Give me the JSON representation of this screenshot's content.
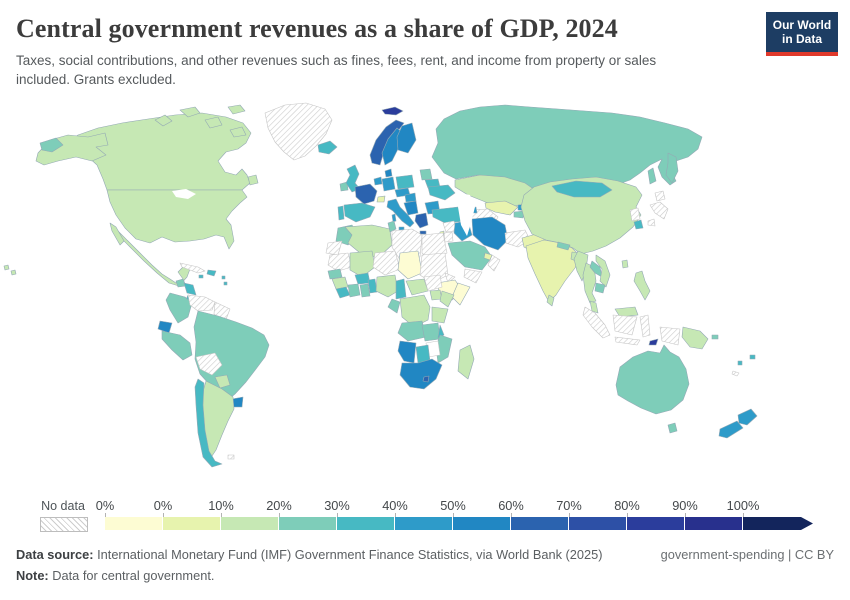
{
  "header": {
    "title": "Central government revenues as a share of GDP, 2024",
    "subtitle_line1": "Taxes, social contributions, and other revenues such as fines, fees, rent, and income from property or sales",
    "subtitle_line2": "included. Grants excluded.",
    "logo": {
      "line1": "Our World",
      "line2": "in Data",
      "bg": "#1d3d63",
      "bar": "#e0392b"
    }
  },
  "legend": {
    "no_data_label": "No data",
    "tick_labels": [
      "0%",
      "0%",
      "10%",
      "20%",
      "30%",
      "40%",
      "50%",
      "60%",
      "70%",
      "80%",
      "90%",
      "100%"
    ],
    "bin_colors": [
      "#fdfcd3",
      "#e7f3ae",
      "#c6e8b4",
      "#7ecdb9",
      "#47b9c3",
      "#2e9bc9",
      "#2187c3",
      "#2b63af",
      "#2d50a6",
      "#2b3d9c",
      "#28308d"
    ],
    "arrow_color": "#13255c"
  },
  "footer": {
    "source_label": "Data source:",
    "source_text": " International Monetary Fund (IMF) Government Finance Statistics, via World Bank (2025)",
    "right_text": "government-spending | CC BY",
    "note_label": "Note:",
    "note_text": " Data for central government."
  },
  "chart_data": {
    "type": "choropleth_map",
    "title": "Central government revenues as a share of GDP, 2024",
    "unit": "% of GDP",
    "bin_labels": [
      "<0%",
      "0-10%",
      "10-20%",
      "20-30%",
      "30-40%",
      "40-50%",
      "50-60%",
      "60-70%",
      "70-80%",
      "80-90%",
      "90-100%",
      ">100%",
      "No data"
    ],
    "legend_note": "values are bin indices into bin_labels; nd = no data, wh = no data (plain)",
    "regions": {
      "canada": 2,
      "usa": 2,
      "alaska": 2,
      "hawaii": 2,
      "greenland": "nd",
      "mexico": 2,
      "guatemala": 3,
      "honduras-nicaragua": 4,
      "costa-rica-panama": 4,
      "cuba": "nd",
      "hispaniola": 4,
      "jamaica": 4,
      "lesser-antilles": 4,
      "colombia": 3,
      "venezuela": "nd",
      "guyana-suriname": "nd",
      "ecuador": 6,
      "peru": 3,
      "brazil": 3,
      "bolivia": "nd",
      "paraguay": 2,
      "uruguay": 6,
      "argentina": 2,
      "chile": 4,
      "falklands": "nd",
      "iceland": 4,
      "ireland": 3,
      "uk": 4,
      "portugal": 4,
      "spain": 4,
      "france": 7,
      "belgium-netherlands": 5,
      "germany": 5,
      "switzerland": 1,
      "italy": 5,
      "austria-czechia": 5,
      "poland": 4,
      "denmark": 6,
      "norway": 7,
      "sweden": 6,
      "finland": 6,
      "svalbard": 9,
      "baltics": 3,
      "belarus": 4,
      "ukraine": 4,
      "hungary-slovakia": 5,
      "romania-bulgaria": 5,
      "balkans": 6,
      "greece": 7,
      "russia": 3,
      "kazakhstan": 2,
      "uzbekistan": 1,
      "turkmenistan": "nd",
      "kyrgyzstan": 5,
      "tajikistan": 3,
      "georgia": 3,
      "azerbaijan": 5,
      "turkey": 4,
      "syria": "nd",
      "iraq": 5,
      "iran": 6,
      "israel": 1,
      "jordan": "nd",
      "saudi-arabia": 3,
      "yemen": "nd",
      "oman": "nd",
      "uae": 1,
      "afghanistan": "nd",
      "pakistan": 1,
      "india": 1,
      "nepal": 3,
      "bangladesh": 2,
      "sri-lanka": 2,
      "china": 2,
      "mongolia": 4,
      "north-korea": "nd",
      "south-korea": 4,
      "japan": "nd",
      "taiwan": 2,
      "myanmar": 2,
      "thailand": 2,
      "laos": 3,
      "vietnam": 2,
      "cambodia": 3,
      "malaysia": 2,
      "indonesia": "nd",
      "philippines": 2,
      "papua-new-guinea": 2,
      "timor-leste": 9,
      "australia": 3,
      "new-zealand": 5,
      "fiji": 4,
      "vanuatu": 4,
      "new-caledonia": "nd",
      "solomon-islands": 3,
      "morocco": 3,
      "western-sahara": "nd",
      "algeria": 2,
      "tunisia": 3,
      "libya": "nd",
      "egypt": "nd",
      "mauritania": "nd",
      "mali": 2,
      "niger": "nd",
      "chad": 0,
      "sudan": "nd",
      "south-sudan": "nd",
      "eritrea": "nd",
      "ethiopia": 0,
      "somalia": 0,
      "senegal": 3,
      "guinea": 2,
      "sierra-leone-liberia": 4,
      "ivory-coast": 3,
      "ghana": 3,
      "burkina-faso": 4,
      "togo-benin": 4,
      "nigeria": 2,
      "cameroon": 4,
      "central-african-republic": 2,
      "drc": 2,
      "congo-gabon": 3,
      "uganda": 2,
      "kenya": 2,
      "tanzania": 2,
      "angola": 3,
      "zambia": 3,
      "malawi": 4,
      "mozambique": 3,
      "zimbabwe": "wh",
      "botswana": 4,
      "namibia": 6,
      "south-africa": 6,
      "lesotho": 7,
      "madagascar": 2
    }
  }
}
